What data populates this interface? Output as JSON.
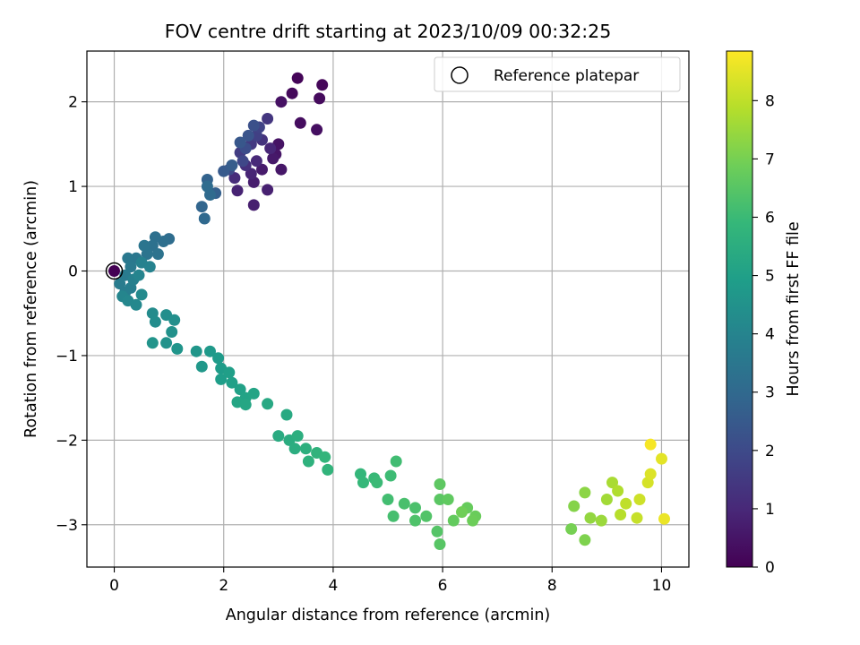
{
  "chart_data": {
    "type": "scatter",
    "title": "FOV centre drift starting at 2023/10/09 00:32:25",
    "xlabel": "Angular distance from reference (arcmin)",
    "ylabel": "Rotation from reference (arcmin)",
    "xlim": [
      -0.5,
      10.5
    ],
    "ylim": [
      -3.5,
      2.6
    ],
    "xticks": [
      0,
      2,
      4,
      6,
      8,
      10
    ],
    "yticks": [
      -3,
      -2,
      -1,
      0,
      1,
      2
    ],
    "grid": true,
    "legend": {
      "placement": "upper-right",
      "entries": [
        "Reference platepar"
      ]
    },
    "reference_point": {
      "x": 0,
      "y": 0,
      "label": "Reference platepar"
    },
    "colorbar": {
      "label": "Hours from first FF file",
      "range": [
        0,
        8.85
      ],
      "ticks": [
        0,
        1,
        2,
        3,
        4,
        5,
        6,
        7,
        8
      ],
      "colormap": "viridis",
      "colors": [
        "#440154",
        "#482878",
        "#3e4989",
        "#31688e",
        "#26828e",
        "#1f9e89",
        "#35b779",
        "#6ece58",
        "#b5de2b",
        "#fde725"
      ]
    },
    "series": [
      {
        "points": [
          [
            0.0,
            0.0,
            0.0
          ],
          [
            3.35,
            2.28,
            0.1
          ],
          [
            3.8,
            2.2,
            0.15
          ],
          [
            3.25,
            2.1,
            0.2
          ],
          [
            3.75,
            2.04,
            0.25
          ],
          [
            3.4,
            1.75,
            0.3
          ],
          [
            3.7,
            1.67,
            0.35
          ],
          [
            3.05,
            2.0,
            0.4
          ],
          [
            3.0,
            1.5,
            0.45
          ],
          [
            2.95,
            1.38,
            0.5
          ],
          [
            3.05,
            1.2,
            0.55
          ],
          [
            2.9,
            1.33,
            0.6
          ],
          [
            2.7,
            1.2,
            0.65
          ],
          [
            2.55,
            1.05,
            0.7
          ],
          [
            2.55,
            0.78,
            0.75
          ],
          [
            2.8,
            0.96,
            0.8
          ],
          [
            2.25,
            0.95,
            0.85
          ],
          [
            2.5,
            1.15,
            0.9
          ],
          [
            2.85,
            1.45,
            0.95
          ],
          [
            2.6,
            1.3,
            1.0
          ],
          [
            2.2,
            1.1,
            1.1
          ],
          [
            2.4,
            1.25,
            1.2
          ],
          [
            2.7,
            1.55,
            1.3
          ],
          [
            2.8,
            1.8,
            1.4
          ],
          [
            2.5,
            1.5,
            1.5
          ],
          [
            2.3,
            1.4,
            1.6
          ],
          [
            2.6,
            1.6,
            1.7
          ],
          [
            2.65,
            1.7,
            1.8
          ],
          [
            2.35,
            1.3,
            1.9
          ],
          [
            2.1,
            1.2,
            2.0
          ],
          [
            2.4,
            1.45,
            2.1
          ],
          [
            2.55,
            1.72,
            2.2
          ],
          [
            2.45,
            1.6,
            2.3
          ],
          [
            2.3,
            1.52,
            2.4
          ],
          [
            2.0,
            1.18,
            2.5
          ],
          [
            2.15,
            1.25,
            2.6
          ],
          [
            1.85,
            0.92,
            2.7
          ],
          [
            1.7,
            1.08,
            2.8
          ],
          [
            1.6,
            0.76,
            2.9
          ],
          [
            1.65,
            0.62,
            3.0
          ],
          [
            1.75,
            0.9,
            3.05
          ],
          [
            1.7,
            1.0,
            3.1
          ],
          [
            1.0,
            0.38,
            3.15
          ],
          [
            0.9,
            0.35,
            3.2
          ],
          [
            0.75,
            0.4,
            3.25
          ],
          [
            0.7,
            0.3,
            3.3
          ],
          [
            0.8,
            0.2,
            3.35
          ],
          [
            0.6,
            0.2,
            3.4
          ],
          [
            0.55,
            0.3,
            3.45
          ],
          [
            0.4,
            0.15,
            3.5
          ],
          [
            0.25,
            0.15,
            3.55
          ],
          [
            0.3,
            0.05,
            3.6
          ],
          [
            0.2,
            -0.05,
            3.65
          ],
          [
            0.1,
            -0.15,
            3.7
          ],
          [
            0.2,
            -0.25,
            3.75
          ],
          [
            0.3,
            -0.2,
            3.8
          ],
          [
            0.35,
            -0.1,
            3.85
          ],
          [
            0.5,
            0.1,
            3.9
          ],
          [
            0.65,
            0.05,
            3.95
          ],
          [
            0.45,
            -0.05,
            4.0
          ],
          [
            0.15,
            -0.3,
            4.05
          ],
          [
            0.25,
            -0.35,
            4.1
          ],
          [
            0.4,
            -0.4,
            4.15
          ],
          [
            0.5,
            -0.28,
            4.2
          ],
          [
            0.7,
            -0.5,
            4.25
          ],
          [
            0.75,
            -0.6,
            4.3
          ],
          [
            0.95,
            -0.52,
            4.35
          ],
          [
            1.1,
            -0.58,
            4.4
          ],
          [
            1.05,
            -0.72,
            4.45
          ],
          [
            0.95,
            -0.85,
            4.5
          ],
          [
            0.7,
            -0.85,
            4.55
          ],
          [
            1.15,
            -0.92,
            4.6
          ],
          [
            1.5,
            -0.95,
            4.65
          ],
          [
            1.6,
            -1.13,
            4.7
          ],
          [
            1.75,
            -0.95,
            4.75
          ],
          [
            1.9,
            -1.03,
            4.8
          ],
          [
            1.95,
            -1.15,
            4.85
          ],
          [
            1.95,
            -1.28,
            4.9
          ],
          [
            2.1,
            -1.2,
            4.95
          ],
          [
            2.15,
            -1.32,
            5.0
          ],
          [
            2.3,
            -1.4,
            5.05
          ],
          [
            2.4,
            -1.5,
            5.1
          ],
          [
            2.55,
            -1.45,
            5.15
          ],
          [
            2.25,
            -1.55,
            5.2
          ],
          [
            2.4,
            -1.58,
            5.25
          ],
          [
            2.8,
            -1.57,
            5.3
          ],
          [
            3.15,
            -1.7,
            5.35
          ],
          [
            3.0,
            -1.95,
            5.4
          ],
          [
            3.2,
            -2.0,
            5.45
          ],
          [
            3.3,
            -2.1,
            5.5
          ],
          [
            3.35,
            -1.95,
            5.55
          ],
          [
            3.5,
            -2.1,
            5.6
          ],
          [
            3.55,
            -2.25,
            5.65
          ],
          [
            3.7,
            -2.15,
            5.7
          ],
          [
            3.9,
            -2.35,
            5.75
          ],
          [
            3.85,
            -2.2,
            5.8
          ],
          [
            4.5,
            -2.4,
            5.85
          ],
          [
            4.55,
            -2.5,
            5.9
          ],
          [
            4.75,
            -2.45,
            5.95
          ],
          [
            4.8,
            -2.5,
            6.0
          ],
          [
            5.05,
            -2.42,
            6.05
          ],
          [
            5.15,
            -2.25,
            6.1
          ],
          [
            5.0,
            -2.7,
            6.15
          ],
          [
            5.1,
            -2.9,
            6.2
          ],
          [
            5.3,
            -2.75,
            6.25
          ],
          [
            5.5,
            -2.8,
            6.3
          ],
          [
            5.5,
            -2.95,
            6.35
          ],
          [
            5.7,
            -2.9,
            6.4
          ],
          [
            5.9,
            -3.08,
            6.45
          ],
          [
            5.95,
            -3.23,
            6.5
          ],
          [
            5.95,
            -2.7,
            6.55
          ],
          [
            5.95,
            -2.52,
            6.6
          ],
          [
            6.1,
            -2.7,
            6.65
          ],
          [
            6.2,
            -2.95,
            6.7
          ],
          [
            6.45,
            -2.8,
            6.75
          ],
          [
            6.6,
            -2.9,
            6.8
          ],
          [
            6.55,
            -2.95,
            6.85
          ],
          [
            6.35,
            -2.85,
            6.9
          ],
          [
            8.35,
            -3.05,
            7.0
          ],
          [
            8.6,
            -3.18,
            7.1
          ],
          [
            8.4,
            -2.78,
            7.2
          ],
          [
            8.6,
            -2.62,
            7.3
          ],
          [
            8.7,
            -2.92,
            7.4
          ],
          [
            8.9,
            -2.95,
            7.5
          ],
          [
            9.0,
            -2.7,
            7.6
          ],
          [
            9.1,
            -2.5,
            7.7
          ],
          [
            9.2,
            -2.6,
            7.8
          ],
          [
            9.25,
            -2.88,
            7.9
          ],
          [
            9.35,
            -2.75,
            8.0
          ],
          [
            9.55,
            -2.92,
            8.1
          ],
          [
            9.6,
            -2.7,
            8.2
          ],
          [
            9.75,
            -2.5,
            8.3
          ],
          [
            9.8,
            -2.4,
            8.4
          ],
          [
            10.0,
            -2.22,
            8.5
          ],
          [
            10.05,
            -2.93,
            8.6
          ],
          [
            9.8,
            -2.05,
            8.75
          ]
        ]
      }
    ]
  }
}
